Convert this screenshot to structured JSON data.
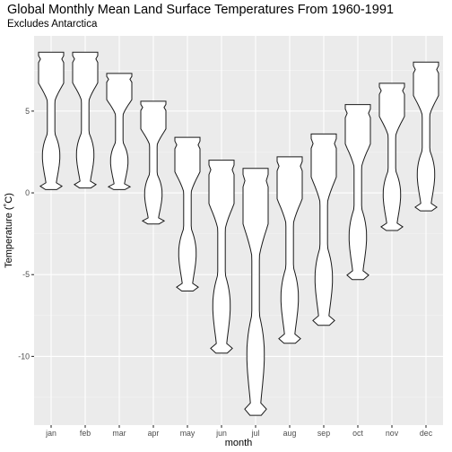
{
  "chart_data": {
    "type": "violin",
    "title": "Global Monthly Mean Land Surface Temperatures From 1960-1991",
    "subtitle": "Excludes Antarctica",
    "xlabel": "month",
    "ylabel": "Temperature (˚C)",
    "ylim": [
      -14.2,
      9.6
    ],
    "yticks": [
      -10,
      -5,
      0,
      5
    ],
    "ytick_labels": [
      "-10",
      "-5",
      "0",
      "5"
    ],
    "grid": true,
    "categories": [
      "jan",
      "feb",
      "mar",
      "apr",
      "may",
      "jun",
      "jul",
      "aug",
      "sep",
      "oct",
      "nov",
      "dec"
    ],
    "violins": [
      {
        "month": "jan",
        "min": 0.2,
        "max": 8.6
      },
      {
        "month": "feb",
        "min": 0.3,
        "max": 8.6
      },
      {
        "month": "mar",
        "min": 0.2,
        "max": 7.3
      },
      {
        "month": "apr",
        "min": -1.9,
        "max": 5.6
      },
      {
        "month": "may",
        "min": -6.0,
        "max": 3.4
      },
      {
        "month": "jun",
        "min": -9.8,
        "max": 2.0
      },
      {
        "month": "jul",
        "min": -13.6,
        "max": 1.5
      },
      {
        "month": "aug",
        "min": -9.2,
        "max": 2.2
      },
      {
        "month": "sep",
        "min": -8.1,
        "max": 3.6
      },
      {
        "month": "oct",
        "min": -5.3,
        "max": 5.4
      },
      {
        "month": "nov",
        "min": -2.3,
        "max": 6.7
      },
      {
        "month": "dec",
        "min": -1.1,
        "max": 8.0
      }
    ]
  }
}
